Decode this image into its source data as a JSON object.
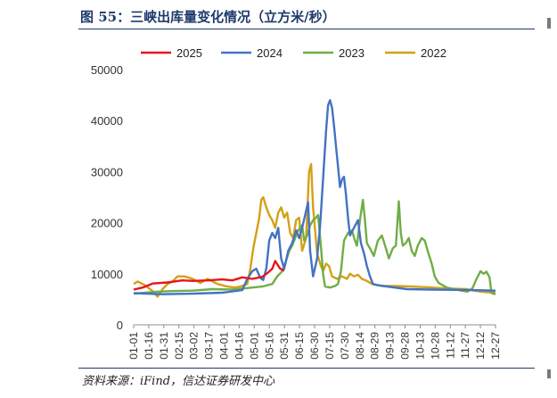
{
  "header": {
    "title": "图 55：三峡出库量变化情况（立方米/秒）"
  },
  "footer": {
    "source": "资料来源：iFind，信达证券研发中心"
  },
  "chart_data": {
    "type": "line",
    "title": "图 55：三峡出库量变化情况（立方米/秒）",
    "xlabel": "",
    "ylabel": "",
    "ylim": [
      0,
      50000
    ],
    "y_ticks": [
      0,
      10000,
      20000,
      30000,
      40000,
      50000
    ],
    "x_ticks": [
      "01-01",
      "01-16",
      "01-31",
      "02-15",
      "03-02",
      "03-17",
      "04-01",
      "04-16",
      "05-01",
      "05-16",
      "05-31",
      "06-15",
      "06-30",
      "07-15",
      "07-30",
      "08-14",
      "08-29",
      "09-13",
      "09-28",
      "10-13",
      "10-28",
      "11-12",
      "11-27",
      "12-12",
      "12-27"
    ],
    "grid": false,
    "legend_position": "top",
    "series": [
      {
        "name": "2025",
        "color": "#e8141c",
        "points": [
          [
            1,
            6900
          ],
          [
            10,
            7300
          ],
          [
            20,
            8100
          ],
          [
            35,
            8300
          ],
          [
            50,
            8700
          ],
          [
            60,
            8600
          ],
          [
            75,
            8700
          ],
          [
            90,
            8900
          ],
          [
            100,
            8700
          ],
          [
            110,
            9300
          ],
          [
            120,
            9000
          ],
          [
            130,
            9400
          ],
          [
            135,
            10100
          ],
          [
            140,
            11000
          ],
          [
            143,
            12500
          ],
          [
            148,
            11000
          ],
          [
            152,
            10600
          ]
        ]
      },
      {
        "name": "2024",
        "color": "#4472c4",
        "points": [
          [
            1,
            6200
          ],
          [
            30,
            6000
          ],
          [
            60,
            6100
          ],
          [
            90,
            6300
          ],
          [
            110,
            6800
          ],
          [
            115,
            9000
          ],
          [
            120,
            10500
          ],
          [
            124,
            11000
          ],
          [
            128,
            9200
          ],
          [
            131,
            8800
          ],
          [
            134,
            11000
          ],
          [
            137,
            16500
          ],
          [
            140,
            18000
          ],
          [
            143,
            17000
          ],
          [
            146,
            19000
          ],
          [
            149,
            13000
          ],
          [
            152,
            11000
          ],
          [
            156,
            14500
          ],
          [
            160,
            16000
          ],
          [
            164,
            18500
          ],
          [
            167,
            17000
          ],
          [
            170,
            19000
          ],
          [
            173,
            21500
          ],
          [
            176,
            24000
          ],
          [
            178,
            14500
          ],
          [
            181,
            9500
          ],
          [
            185,
            13000
          ],
          [
            188,
            19500
          ],
          [
            191,
            28500
          ],
          [
            194,
            38000
          ],
          [
            196,
            43000
          ],
          [
            198,
            44000
          ],
          [
            200,
            42500
          ],
          [
            202,
            39000
          ],
          [
            204,
            35000
          ],
          [
            206,
            31000
          ],
          [
            208,
            27000
          ],
          [
            210,
            28500
          ],
          [
            212,
            29000
          ],
          [
            214,
            25500
          ],
          [
            216,
            21000
          ],
          [
            218,
            17500
          ],
          [
            222,
            19000
          ],
          [
            226,
            20500
          ],
          [
            229,
            16000
          ],
          [
            232,
            14000
          ],
          [
            235,
            11500
          ],
          [
            238,
            9500
          ],
          [
            241,
            8000
          ],
          [
            245,
            7800
          ],
          [
            255,
            7500
          ],
          [
            275,
            7000
          ],
          [
            300,
            6900
          ],
          [
            340,
            6800
          ],
          [
            364,
            6700
          ]
        ]
      },
      {
        "name": "2023",
        "color": "#70ad47",
        "points": [
          [
            1,
            6100
          ],
          [
            25,
            6500
          ],
          [
            40,
            6600
          ],
          [
            60,
            6700
          ],
          [
            80,
            7000
          ],
          [
            100,
            6900
          ],
          [
            115,
            7200
          ],
          [
            130,
            7500
          ],
          [
            140,
            8000
          ],
          [
            145,
            9500
          ],
          [
            150,
            10500
          ],
          [
            153,
            12000
          ],
          [
            157,
            14500
          ],
          [
            160,
            15500
          ],
          [
            163,
            17000
          ],
          [
            166,
            18500
          ],
          [
            168,
            19000
          ],
          [
            170,
            19500
          ],
          [
            172,
            16500
          ],
          [
            175,
            17500
          ],
          [
            178,
            19500
          ],
          [
            181,
            20500
          ],
          [
            184,
            21000
          ],
          [
            186,
            21500
          ],
          [
            189,
            15000
          ],
          [
            191,
            10000
          ],
          [
            193,
            7500
          ],
          [
            198,
            7300
          ],
          [
            203,
            7600
          ],
          [
            206,
            8000
          ],
          [
            209,
            10500
          ],
          [
            212,
            16500
          ],
          [
            216,
            18000
          ],
          [
            220,
            18500
          ],
          [
            223,
            16500
          ],
          [
            225,
            15500
          ],
          [
            228,
            20500
          ],
          [
            231,
            24500
          ],
          [
            233,
            20500
          ],
          [
            235,
            16000
          ],
          [
            238,
            15000
          ],
          [
            242,
            13500
          ],
          [
            246,
            16500
          ],
          [
            250,
            17500
          ],
          [
            254,
            15000
          ],
          [
            257,
            13000
          ],
          [
            261,
            15000
          ],
          [
            264,
            15500
          ],
          [
            267,
            24200
          ],
          [
            269,
            18000
          ],
          [
            271,
            15500
          ],
          [
            274,
            16000
          ],
          [
            277,
            17000
          ],
          [
            280,
            14500
          ],
          [
            283,
            13500
          ],
          [
            286,
            15500
          ],
          [
            290,
            17000
          ],
          [
            293,
            16500
          ],
          [
            296,
            14500
          ],
          [
            300,
            12000
          ],
          [
            303,
            9500
          ],
          [
            307,
            8200
          ],
          [
            315,
            7300
          ],
          [
            322,
            7000
          ],
          [
            330,
            6700
          ],
          [
            336,
            6500
          ],
          [
            341,
            7200
          ],
          [
            345,
            9000
          ],
          [
            349,
            10500
          ],
          [
            352,
            10000
          ],
          [
            355,
            10400
          ],
          [
            358,
            9300
          ],
          [
            360,
            6200
          ],
          [
            364,
            6000
          ]
        ]
      },
      {
        "name": "2022",
        "color": "#d4a017",
        "points": [
          [
            1,
            8000
          ],
          [
            5,
            8500
          ],
          [
            12,
            7800
          ],
          [
            20,
            6600
          ],
          [
            25,
            5500
          ],
          [
            30,
            7000
          ],
          [
            35,
            8000
          ],
          [
            40,
            8500
          ],
          [
            45,
            9500
          ],
          [
            52,
            9500
          ],
          [
            60,
            9000
          ],
          [
            68,
            8200
          ],
          [
            75,
            9000
          ],
          [
            85,
            8000
          ],
          [
            95,
            7500
          ],
          [
            102,
            7300
          ],
          [
            108,
            7500
          ],
          [
            115,
            8000
          ],
          [
            118,
            11000
          ],
          [
            121,
            15000
          ],
          [
            124,
            18000
          ],
          [
            127,
            21000
          ],
          [
            129,
            24500
          ],
          [
            131,
            25000
          ],
          [
            134,
            23000
          ],
          [
            137,
            21500
          ],
          [
            140,
            20500
          ],
          [
            143,
            19000
          ],
          [
            146,
            22000
          ],
          [
            149,
            23000
          ],
          [
            152,
            21000
          ],
          [
            155,
            22000
          ],
          [
            158,
            18000
          ],
          [
            161,
            17000
          ],
          [
            164,
            20500
          ],
          [
            167,
            21000
          ],
          [
            170,
            14500
          ],
          [
            174,
            17000
          ],
          [
            177,
            30000
          ],
          [
            179,
            31500
          ],
          [
            181,
            23000
          ],
          [
            183,
            18500
          ],
          [
            185,
            14000
          ],
          [
            188,
            12000
          ],
          [
            191,
            10500
          ],
          [
            194,
            12000
          ],
          [
            197,
            11500
          ],
          [
            200,
            9500
          ],
          [
            205,
            9000
          ],
          [
            210,
            9500
          ],
          [
            215,
            9000
          ],
          [
            218,
            10000
          ],
          [
            222,
            9500
          ],
          [
            226,
            9800
          ],
          [
            230,
            9000
          ],
          [
            235,
            8600
          ],
          [
            240,
            8000
          ],
          [
            250,
            7600
          ],
          [
            265,
            7600
          ],
          [
            280,
            7500
          ],
          [
            300,
            7300
          ],
          [
            320,
            7100
          ],
          [
            335,
            7000
          ],
          [
            345,
            6600
          ],
          [
            355,
            6400
          ],
          [
            364,
            6300
          ]
        ]
      }
    ]
  }
}
